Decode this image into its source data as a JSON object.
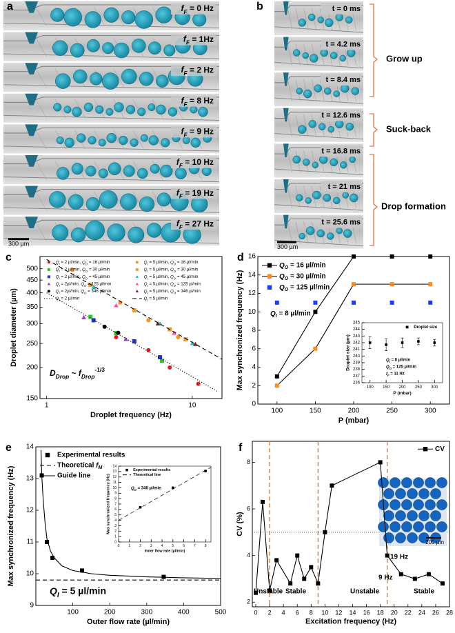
{
  "image_panels": [
    {
      "panel_label": "a",
      "labels": [
        "fF = 0 Hz",
        "fF = 1Hz",
        "fF = 2 Hz",
        "fF = 8 Hz",
        "fF = 9 Hz",
        "fF = 10 Hz",
        "fF = 19 Hz",
        "fF = 27 Hz"
      ],
      "scale_bar": "300 µm"
    },
    {
      "panel_label": "b",
      "labels": [
        "t = 0 ms",
        "t = 4.2 ms",
        "t = 8.4 ms",
        "t = 12.6 ms",
        "t = 16.8 ms",
        "t = 21 ms",
        "t = 25.6 ms"
      ],
      "scale_bar": "300 µm",
      "stages": [
        "Grow up",
        "Suck-back",
        "Drop formation"
      ]
    }
  ],
  "chart_data": [
    {
      "panel_label": "c",
      "type": "scatter",
      "xlabel": "Droplet frequency (Hz)",
      "ylabel": "Droplet diameter (µm)",
      "xlog": true,
      "ylog": true,
      "xlim": [
        0.9,
        16
      ],
      "ylim": [
        150,
        560
      ],
      "xticks": [
        1,
        10
      ],
      "yticks": [
        150,
        200,
        250,
        300,
        350,
        400,
        450,
        500
      ],
      "legend": "upper left",
      "annotations": [
        "DDrop ~ fDrop-1/3"
      ],
      "series": [
        {
          "name": "QI = 2 µl/min, QO = 16 µl/min",
          "color": "#e41a1c",
          "marker": "circle",
          "mode": "markers",
          "x": [
            3,
            5,
            7,
            11
          ],
          "values": [
            265,
            235,
            200,
            172
          ]
        },
        {
          "name": "QI = 2 µl/min, QO = 30 µl/min",
          "color": "#22cc22",
          "marker": "square",
          "mode": "markers",
          "x": [
            2,
            3,
            6.2
          ],
          "values": [
            320,
            275,
            213
          ]
        },
        {
          "name": "QI = 2 µl/min, QO = 45 µl/min",
          "color": "#2233cc",
          "marker": "square",
          "mode": "markers",
          "x": [
            2.1,
            4,
            6
          ],
          "values": [
            310,
            255,
            220
          ]
        },
        {
          "name": "QI = 2µl/min, QO = 125 µl/min",
          "color": "#9933cc",
          "marker": "triangle",
          "mode": "markers",
          "x": [
            1.8,
            3.5
          ],
          "values": [
            318,
            260
          ]
        },
        {
          "name": "QI = 2µl/min, QO = 346 µl/min",
          "color": "#000000",
          "marker": "circle",
          "mode": "markers",
          "x": [
            2.5,
            3.1
          ],
          "values": [
            292,
            276
          ]
        },
        {
          "name": "QI = 2 µl/min",
          "color": "#000000",
          "dash": "dotted",
          "mode": "lines",
          "x": [
            1,
            15
          ],
          "values": [
            400,
            160
          ]
        },
        {
          "name": "QI = 5 µl/min, QO = 16 µl/min",
          "color": "#ff8c1a",
          "marker": "circle",
          "mode": "markers",
          "x": [
            1.5,
            3.2,
            5,
            8
          ],
          "values": [
            495,
            365,
            310,
            265
          ]
        },
        {
          "name": "QI = 5 µl/min, QO = 30 µl/min",
          "color": "#f0a030",
          "marker": "square",
          "mode": "markers",
          "x": [
            2,
            4,
            7,
            9
          ],
          "values": [
            430,
            340,
            285,
            260
          ]
        },
        {
          "name": "QI = 5 µl/min, QO = 45 µl/min",
          "color": "#22bbcc",
          "marker": "triangle",
          "mode": "markers",
          "x": [
            2.1,
            6,
            10
          ],
          "values": [
            420,
            300,
            250
          ]
        },
        {
          "name": "QI = 5 µl/min, QO = 125 µl/min",
          "color": "#ff4da6",
          "marker": "triangle",
          "mode": "markers",
          "x": [
            3,
            7.5
          ],
          "values": [
            355,
            275
          ]
        },
        {
          "name": "QI = 5 µl/min, QO = 346 µl/min",
          "color": "#8b1a1a",
          "marker": "triangle",
          "mode": "markers",
          "x": [
            5.8,
            10.5
          ],
          "values": [
            300,
            248
          ]
        },
        {
          "name": "QI = 5 µl/min",
          "color": "#000000",
          "dash": "dashed",
          "mode": "lines",
          "x": [
            1,
            16
          ],
          "values": [
            545,
            216
          ]
        }
      ]
    },
    {
      "panel_label": "d",
      "type": "line",
      "xlabel": "P (mbar)",
      "ylabel": "Max synchronized frequency (Hz)",
      "xlim": [
        75,
        325
      ],
      "ylim": [
        0,
        16
      ],
      "xticks": [
        100,
        150,
        200,
        250,
        300
      ],
      "yticks": [
        0,
        2,
        4,
        6,
        8,
        10,
        12,
        14,
        16
      ],
      "legend": "upper left",
      "annotations": [
        "QI = 8 µl/min"
      ],
      "series": [
        {
          "name": "QO = 16 µl/min",
          "color": "#000000",
          "marker": "square",
          "mode": "lines+markers",
          "x": [
            100,
            150,
            200,
            250,
            300
          ],
          "values": [
            3,
            10,
            16,
            16,
            16
          ]
        },
        {
          "name": "QO = 30 µl/min",
          "color": "#ff8c1a",
          "line_color": "#000000",
          "marker": "square",
          "mode": "lines+markers",
          "x": [
            100,
            150,
            200,
            250,
            300
          ],
          "values": [
            2,
            6,
            13,
            13,
            13
          ]
        },
        {
          "name": "QO = 125 µl/min",
          "color": "#1a3cff",
          "marker": "square",
          "mode": "markers",
          "x": [
            100,
            150,
            200,
            250,
            300
          ],
          "values": [
            11,
            11,
            11,
            11,
            11
          ]
        }
      ]
    },
    {
      "type": "line",
      "xlabel": "P (mbar)",
      "ylabel": "Droplet size (µm)",
      "xlim": [
        75,
        325
      ],
      "ylim": [
        236,
        245
      ],
      "xticks": [
        100,
        150,
        200,
        250,
        300
      ],
      "yticks": [
        236,
        237,
        238,
        239,
        240,
        241,
        242,
        243,
        244,
        245
      ],
      "legend": "upper right",
      "annotations": [
        "QI = 8 µl/min",
        "QO = 125 µl/min",
        "fF = 11 Hz"
      ],
      "series": [
        {
          "name": "Droplet size",
          "color": "#000000",
          "marker": "square",
          "mode": "markers",
          "x": [
            100,
            150,
            200,
            250,
            300
          ],
          "values": [
            242,
            241.7,
            242,
            242.2,
            242
          ],
          "errors": [
            0.9,
            0.9,
            0.7,
            0.5,
            0.5
          ]
        }
      ]
    },
    {
      "panel_label": "e",
      "type": "line",
      "xlabel": "Outer flow rate (µl/min)",
      "ylabel": "Max synchronized frequency (Hz)",
      "xlim": [
        0,
        500
      ],
      "ylim": [
        9,
        14
      ],
      "xticks": [
        100,
        200,
        300,
        400,
        500
      ],
      "yticks": [
        9,
        10,
        11,
        12,
        13,
        14
      ],
      "legend": "upper left",
      "annotations": [
        "QI = 5 µl/min"
      ],
      "series": [
        {
          "name": "Experimental results",
          "color": "#000000",
          "marker": "square",
          "mode": "markers",
          "x": [
            16,
            30,
            45,
            125,
            346
          ],
          "values": [
            13.1,
            11,
            10.5,
            10.1,
            9.9
          ]
        },
        {
          "name": "Theoretical fM",
          "color": "#000000",
          "dash": "dashed",
          "mode": "lines",
          "x": [
            0,
            500
          ],
          "values": [
            9.8,
            9.8
          ]
        },
        {
          "name": "Guide line",
          "color": "#000000",
          "mode": "lines",
          "x": [
            14,
            16,
            20,
            25,
            30,
            40,
            50,
            70,
            100,
            150,
            200,
            300,
            400,
            500
          ],
          "values": [
            13.9,
            13.1,
            12.3,
            11.6,
            11.1,
            10.7,
            10.5,
            10.25,
            10.1,
            10.0,
            9.95,
            9.9,
            9.87,
            9.85
          ]
        }
      ]
    },
    {
      "type": "line",
      "xlabel": "Inner flow rate (µl/min)",
      "ylabel": "Max synchronized frequency (Hz)",
      "xlim": [
        0,
        8.5
      ],
      "ylim": [
        0,
        14
      ],
      "xticks": [
        0,
        1,
        2,
        3,
        4,
        5,
        6,
        7,
        8
      ],
      "yticks": [
        0,
        1,
        2,
        3,
        4,
        5,
        6,
        7,
        8,
        9,
        10,
        11,
        12,
        13,
        14
      ],
      "legend": "upper left",
      "annotations": [
        "QO = 346 µl/min"
      ],
      "series": [
        {
          "name": "Experimental results",
          "color": "#000000",
          "marker": "square",
          "mode": "markers",
          "x": [
            2,
            5,
            8
          ],
          "values": [
            6.4,
            10,
            13.1
          ]
        },
        {
          "name": "Theoretical line",
          "color": "#000000",
          "dash": "dashed",
          "mode": "lines",
          "x": [
            0,
            8.5
          ],
          "values": [
            4,
            13.8
          ]
        }
      ]
    },
    {
      "panel_label": "f",
      "type": "line",
      "xlabel": "Excitation frequency (Hz)",
      "ylabel": "CV (%)",
      "xlim": [
        -0.5,
        28
      ],
      "ylim": [
        1.8,
        8.9
      ],
      "xticks": [
        0,
        2,
        4,
        6,
        8,
        10,
        12,
        14,
        16,
        18,
        20,
        22,
        24,
        26,
        28
      ],
      "yticks": [
        2,
        4,
        6,
        8
      ],
      "legend": "upper right",
      "vlines": [
        2,
        9,
        19
      ],
      "vline_color": "#e87722",
      "hline": 5,
      "annotations": [
        "Unstable",
        "Stable",
        "Unstable",
        "Stable",
        "9 Hz",
        "19 Hz"
      ],
      "inset_scale_bar": "200 µm",
      "series": [
        {
          "name": "CV",
          "color": "#000000",
          "marker": "square",
          "mode": "lines+markers",
          "x": [
            0,
            1,
            2,
            3,
            5,
            6,
            7,
            8,
            9,
            10,
            11,
            18,
            19,
            21,
            23,
            25,
            27
          ],
          "values": [
            2.4,
            6.3,
            2.5,
            3.8,
            2.8,
            4,
            3,
            3.5,
            2.8,
            5,
            7,
            8,
            4,
            3.2,
            3,
            3.2,
            2.8
          ]
        }
      ]
    }
  ]
}
